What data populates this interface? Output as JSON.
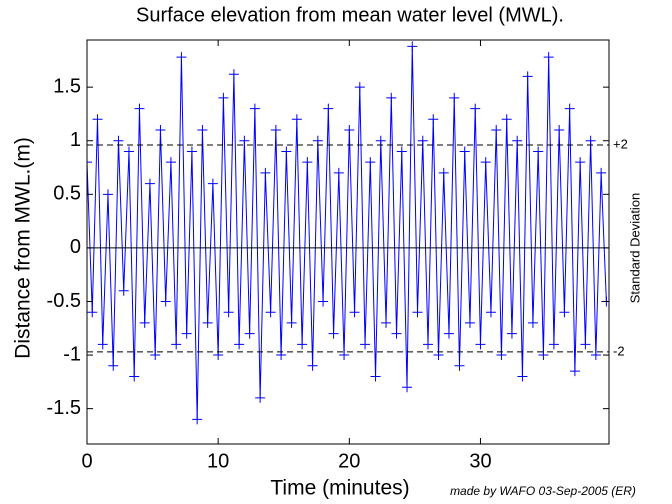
{
  "chart_data": {
    "type": "line",
    "title": "Surface elevation from mean water level (MWL).",
    "x_label": "Time (minutes)",
    "y_label": "Distance from MWL.(m)",
    "credit": "made by WAFO 03-Sep-2005 (ER)",
    "right_label": "Standard Deviation",
    "mean_line": 0,
    "reference_lines": [
      {
        "value": 0.96,
        "label": "+2"
      },
      {
        "value": -0.97,
        "label": "-2"
      }
    ],
    "xlim": [
      0,
      39.8
    ],
    "ylim": [
      -1.83,
      1.94
    ],
    "xticks": [
      0,
      10,
      20,
      30
    ],
    "yticks": [
      -1.5,
      -1,
      -0.5,
      0,
      0.5,
      1,
      1.5
    ],
    "x": [
      0,
      0.4,
      0.8,
      1.2,
      1.6,
      2,
      2.4,
      2.8,
      3.2,
      3.6,
      4,
      4.4,
      4.8,
      5.2,
      5.6,
      6,
      6.4,
      6.8,
      7.2,
      7.6,
      8,
      8.4,
      8.8,
      9.2,
      9.6,
      10,
      10.4,
      10.8,
      11.2,
      11.6,
      12,
      12.4,
      12.8,
      13.2,
      13.6,
      14,
      14.4,
      14.8,
      15.2,
      15.6,
      16,
      16.4,
      16.8,
      17.2,
      17.6,
      18,
      18.4,
      18.8,
      19.2,
      19.6,
      20,
      20.4,
      20.8,
      21.2,
      21.6,
      22,
      22.4,
      22.8,
      23.2,
      23.6,
      24,
      24.4,
      24.8,
      25.2,
      25.6,
      26,
      26.4,
      26.8,
      27.2,
      27.6,
      28,
      28.4,
      28.8,
      29.2,
      29.6,
      30,
      30.4,
      30.8,
      31.2,
      31.6,
      32,
      32.4,
      32.8,
      33.2,
      33.6,
      34,
      34.4,
      34.8,
      35.2,
      35.6,
      36,
      36.4,
      36.8,
      37.2,
      37.6,
      38,
      38.4,
      38.8,
      39.2,
      39.6
    ],
    "series": [
      {
        "color": "#0000ff",
        "marker": "+",
        "values": [
          0.8,
          -0.6,
          1.2,
          -0.9,
          0.5,
          -1.1,
          1.0,
          -0.4,
          0.9,
          -1.2,
          1.3,
          -0.7,
          0.6,
          -1.0,
          1.1,
          -0.5,
          0.8,
          -0.9,
          1.78,
          -0.8,
          0.9,
          -1.6,
          1.1,
          -0.7,
          0.6,
          -1.0,
          1.4,
          -0.6,
          1.62,
          -0.9,
          1.0,
          -0.8,
          1.3,
          -1.4,
          0.7,
          -0.6,
          1.1,
          -1.0,
          0.9,
          -0.7,
          1.2,
          -0.9,
          0.8,
          -1.1,
          1.0,
          -0.5,
          1.3,
          -0.8,
          0.7,
          -1.0,
          1.1,
          -0.6,
          1.5,
          -0.9,
          0.8,
          -1.2,
          1.0,
          -0.7,
          1.4,
          -0.8,
          0.9,
          -1.3,
          1.88,
          -0.6,
          1.0,
          -0.9,
          1.2,
          -1.0,
          0.7,
          -0.8,
          1.4,
          -1.1,
          0.9,
          -0.7,
          1.3,
          -0.9,
          0.8,
          -0.6,
          1.1,
          -1.0,
          1.2,
          -0.8,
          1.0,
          -1.2,
          1.6,
          -0.7,
          0.9,
          -1.0,
          1.78,
          -0.9,
          1.1,
          -0.6,
          1.3,
          -1.15,
          0.8,
          -0.9,
          1.0,
          -1.0,
          0.7,
          -0.5
        ]
      }
    ]
  }
}
